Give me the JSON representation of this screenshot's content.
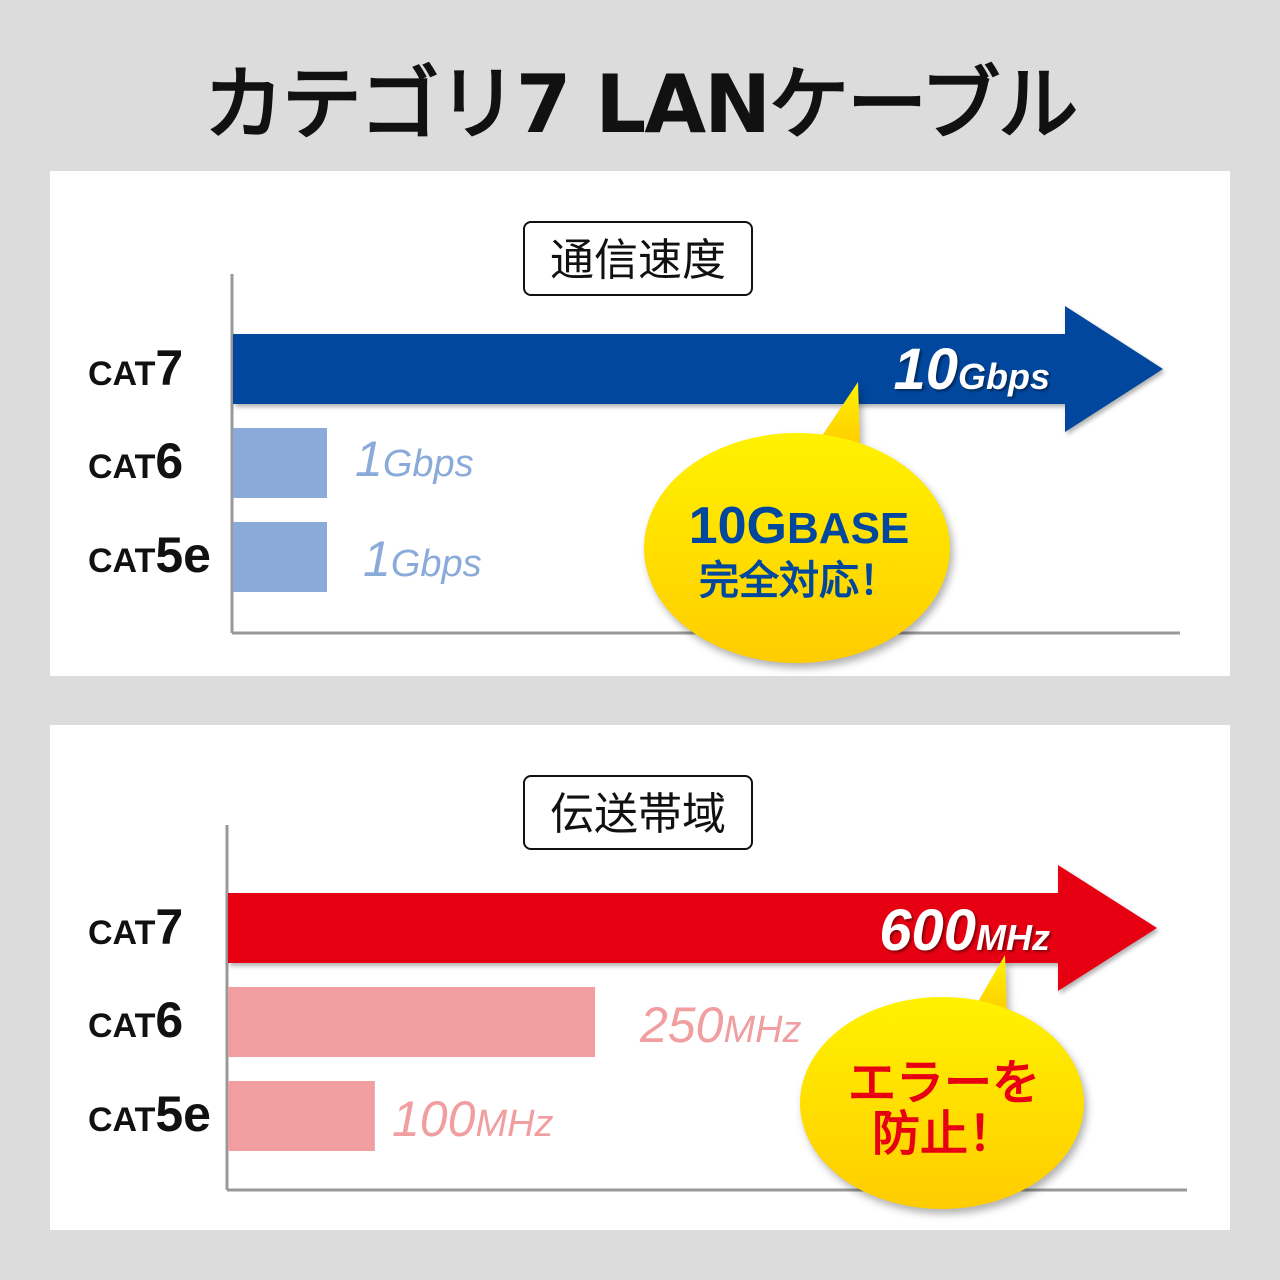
{
  "title": "カテゴリ7 LANケーブル",
  "chart_data": [
    {
      "type": "bar",
      "orientation": "horizontal",
      "title": "通信速度",
      "categories": [
        "CAT7",
        "CAT6",
        "CAT5e"
      ],
      "category_labels": [
        [
          "CAT",
          "7"
        ],
        [
          "CAT",
          "6"
        ],
        [
          "CAT",
          "5e"
        ]
      ],
      "values": [
        10,
        1,
        1
      ],
      "unit": "Gbps",
      "data_labels": [
        [
          "10",
          "Gbps"
        ],
        [
          "1",
          "Gbps"
        ],
        [
          "1",
          "Gbps"
        ]
      ],
      "colors": {
        "highlight": "#00479d",
        "other": "#8aabd9"
      },
      "callout": {
        "lines": [
          [
            "10G",
            "BASE"
          ],
          [
            "完全対応！"
          ]
        ],
        "text_color": "#00479d",
        "fill": "#ffe600"
      }
    },
    {
      "type": "bar",
      "orientation": "horizontal",
      "title": "伝送帯域",
      "categories": [
        "CAT7",
        "CAT6",
        "CAT5e"
      ],
      "category_labels": [
        [
          "CAT",
          "7"
        ],
        [
          "CAT",
          "6"
        ],
        [
          "CAT",
          "5e"
        ]
      ],
      "values": [
        600,
        250,
        100
      ],
      "unit": "MHz",
      "data_labels": [
        [
          "600",
          "MHz"
        ],
        [
          "250",
          "MHz"
        ],
        [
          "100",
          "MHz"
        ]
      ],
      "colors": {
        "highlight": "#e60012",
        "other": "#f19ea0"
      },
      "callout": {
        "lines": [
          [
            "エラーを"
          ],
          [
            "防止！"
          ]
        ],
        "text_color": "#e60012",
        "fill": "#ffe600"
      }
    }
  ]
}
